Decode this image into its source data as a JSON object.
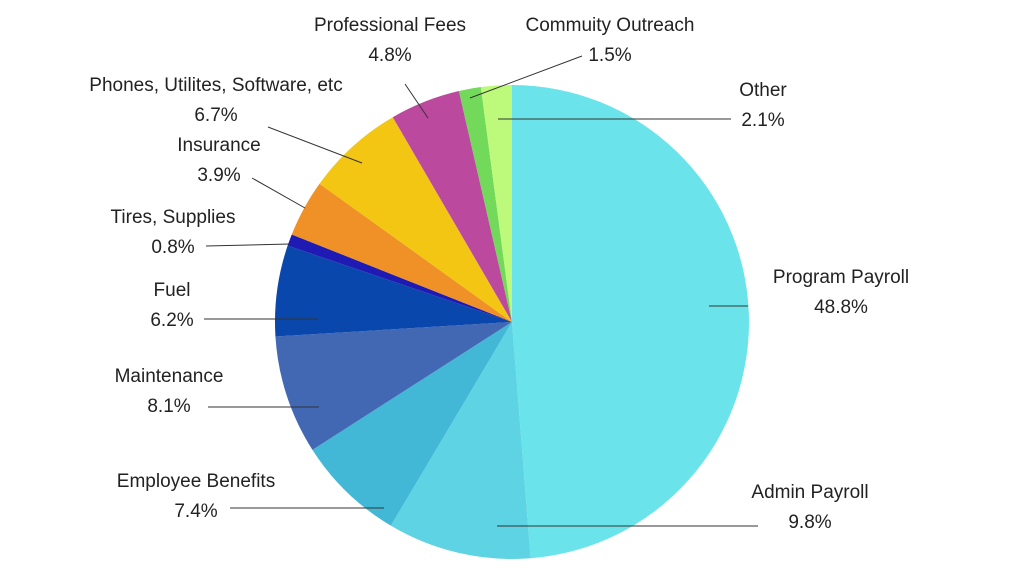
{
  "chart_data": {
    "type": "pie",
    "title": "",
    "start_angle_deg": 0,
    "direction": "clockwise",
    "slices": [
      {
        "label": "Program Payroll",
        "value": 48.8,
        "value_label": "48.8%",
        "color": "#6AE4EA"
      },
      {
        "label": "Admin Payroll",
        "value": 9.8,
        "value_label": "9.8%",
        "color": "#5DD3E3"
      },
      {
        "label": "Employee Benefits",
        "value": 7.4,
        "value_label": "7.4%",
        "color": "#43B8D6"
      },
      {
        "label": "Maintenance",
        "value": 8.1,
        "value_label": "8.1%",
        "color": "#4268B3"
      },
      {
        "label": "Fuel",
        "value": 6.2,
        "value_label": "6.2%",
        "color": "#0A47AC"
      },
      {
        "label": "Tires, Supplies",
        "value": 0.8,
        "value_label": "0.8%",
        "color": "#1E1AB3"
      },
      {
        "label": "Insurance",
        "value": 3.9,
        "value_label": "3.9%",
        "color": "#EF9126"
      },
      {
        "label": "Phones, Utilites, Software, etc",
        "value": 6.7,
        "value_label": "6.7%",
        "color": "#F3C614"
      },
      {
        "label": "Professional Fees",
        "value": 4.8,
        "value_label": "4.8%",
        "color": "#BB4A9F"
      },
      {
        "label": "Commuity Outreach",
        "value": 1.5,
        "value_label": "1.5%",
        "color": "#73D95B"
      },
      {
        "label": "Other",
        "value": 2.1,
        "value_label": "2.1%",
        "color": "#BDF97A"
      }
    ]
  }
}
